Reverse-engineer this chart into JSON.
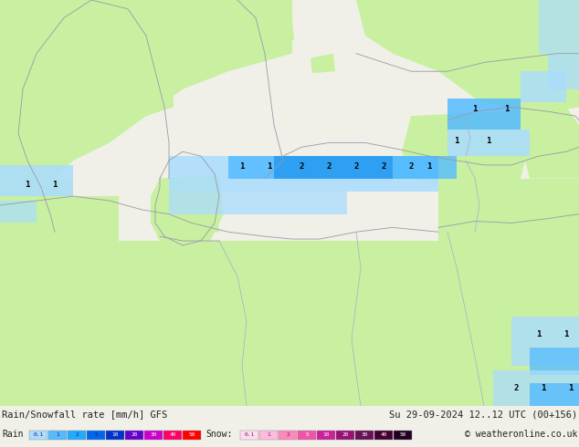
{
  "title_left": "Rain/Snowfall rate [mm/h] GFS",
  "title_right": "Su 29-09-2024 12..12 UTC (00+156)",
  "copyright": "© weatheronline.co.uk",
  "bg_color": "#f0f0e8",
  "land_color": "#c8f0a0",
  "sea_color": "#e8e8e8",
  "rain_light": "#aaddff",
  "rain_mid": "#55bbff",
  "rain_heavy": "#2299ee",
  "figsize": [
    6.34,
    4.9
  ],
  "dpi": 100,
  "rain_legend_vals": [
    "0.1",
    "1",
    "2",
    "5",
    "10",
    "20",
    "30",
    "40",
    "50"
  ],
  "rain_legend_cols": [
    "#aaddff",
    "#55bbff",
    "#22aaff",
    "#0066ee",
    "#0033cc",
    "#6600cc",
    "#cc00cc",
    "#ff0066",
    "#ff0000"
  ],
  "snow_legend_vals": [
    "0.1",
    "1",
    "2",
    "5",
    "10",
    "20",
    "30",
    "40",
    "50"
  ],
  "snow_legend_cols": [
    "#ffddee",
    "#ffbbdd",
    "#ff88bb",
    "#ee55aa",
    "#cc2299",
    "#991177",
    "#661155",
    "#440033",
    "#220022"
  ]
}
